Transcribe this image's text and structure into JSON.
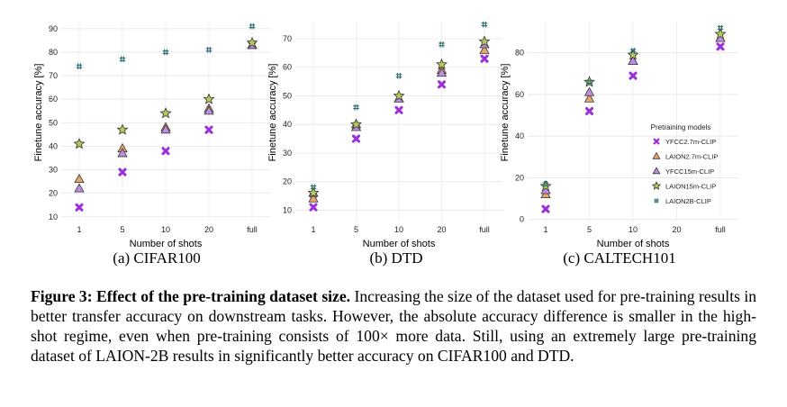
{
  "caption": {
    "label": "Figure 3:",
    "title": "Effect of the pre-training dataset size.",
    "text": "Increasing the size of the dataset used for pre-training results in better transfer accuracy on downstream tasks. However, the absolute accuracy difference is smaller in the high-shot regime, even when pre-training consists of 100× more data. Still, using an extremely large pre-training dataset of LAION-2B results in significantly better accuracy on CIFAR100 and DTD."
  },
  "legend": {
    "title": "Pretraining models",
    "placement": "right"
  },
  "series_styles": [
    {
      "name": "YFCC2.7m-CLIP",
      "marker": "x-icon",
      "color": "#9b30d9"
    },
    {
      "name": "LAION2.7m-CLIP",
      "marker": "triangle-icon",
      "color": "#e8a66a"
    },
    {
      "name": "YFCC15m-CLIP",
      "marker": "triangle-icon",
      "color": "#c08ee8"
    },
    {
      "name": "LAION15m-CLIP",
      "marker": "star-icon",
      "color": "#b7c95a"
    },
    {
      "name": "LAION2B-CLIP",
      "marker": "hash-icon",
      "color": "#2d6e6e"
    }
  ],
  "chart_data": [
    {
      "type": "scatter",
      "subcaption": "(a) CIFAR100",
      "xlabel": "Number of shots",
      "ylabel": "Finetune accuracy [%]",
      "categories": [
        "1",
        "5",
        "10",
        "20",
        "full"
      ],
      "ylim": [
        8,
        93
      ],
      "yticks": [
        10,
        20,
        30,
        40,
        50,
        60,
        70,
        80,
        90
      ],
      "grid": true,
      "series": [
        {
          "name": "YFCC2.7m-CLIP",
          "values": [
            14,
            29,
            38,
            47,
            83
          ]
        },
        {
          "name": "LAION2.7m-CLIP",
          "values": [
            26,
            39,
            48,
            56,
            83
          ]
        },
        {
          "name": "YFCC15m-CLIP",
          "values": [
            22,
            37,
            47,
            55,
            83
          ]
        },
        {
          "name": "LAION15m-CLIP",
          "values": [
            41,
            47,
            54,
            60,
            84
          ]
        },
        {
          "name": "LAION2B-CLIP",
          "values": [
            74,
            77,
            80,
            81,
            91
          ]
        }
      ]
    },
    {
      "type": "scatter",
      "subcaption": "(b) DTD",
      "xlabel": "Number of shots",
      "ylabel": "Finetune accuracy [%]",
      "categories": [
        "1",
        "5",
        "10",
        "20",
        "full"
      ],
      "ylim": [
        6,
        76
      ],
      "yticks": [
        10,
        20,
        30,
        40,
        50,
        60,
        70
      ],
      "grid": true,
      "series": [
        {
          "name": "YFCC2.7m-CLIP",
          "values": [
            11,
            35,
            45,
            54,
            63
          ]
        },
        {
          "name": "LAION2.7m-CLIP",
          "values": [
            14,
            40,
            49,
            59,
            66
          ]
        },
        {
          "name": "YFCC15m-CLIP",
          "values": [
            16,
            39,
            49,
            58,
            68
          ]
        },
        {
          "name": "LAION15m-CLIP",
          "values": [
            16,
            40,
            50,
            61,
            69
          ]
        },
        {
          "name": "LAION2B-CLIP",
          "values": [
            18,
            46,
            57,
            68,
            75
          ]
        }
      ]
    },
    {
      "type": "scatter",
      "subcaption": "(c) CALTECH101",
      "xlabel": "Number of shots",
      "ylabel": "Finetune accuracy [%]",
      "categories": [
        "1",
        "5",
        "10",
        "20",
        "full"
      ],
      "ylim": [
        -1,
        95
      ],
      "yticks": [
        0,
        20,
        40,
        60,
        80
      ],
      "grid": true,
      "legend": true,
      "series": [
        {
          "name": "YFCC2.7m-CLIP",
          "values": [
            5,
            52,
            69,
            null,
            83
          ]
        },
        {
          "name": "LAION2.7m-CLIP",
          "values": [
            12,
            58,
            76,
            null,
            87
          ]
        },
        {
          "name": "YFCC15m-CLIP",
          "values": [
            14,
            61,
            76,
            null,
            87
          ]
        },
        {
          "name": "LAION15m-CLIP",
          "values": [
            16,
            66,
            79,
            null,
            89
          ]
        },
        {
          "name": "LAION2B-CLIP",
          "values": [
            17,
            66,
            81,
            null,
            92
          ]
        }
      ]
    }
  ]
}
